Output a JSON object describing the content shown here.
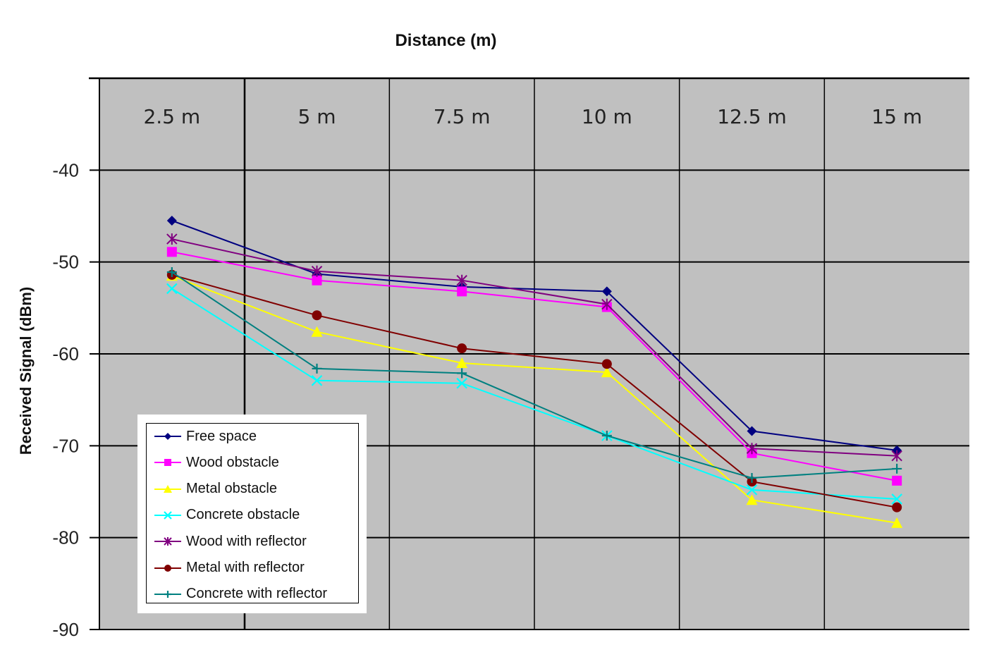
{
  "chart_data": {
    "type": "line",
    "xlabel": "Distance (m)",
    "ylabel": "Received Signal (dBm)",
    "categories": [
      "2.5 m",
      "5 m",
      "7.5 m",
      "10 m",
      "12.5 m",
      "15 m"
    ],
    "ylim": [
      -90,
      -30
    ],
    "yticks": [
      -40,
      -50,
      -60,
      -70,
      -80,
      -90
    ],
    "ytick_labels": [
      "-40",
      "-50",
      "-60",
      "-70",
      "-80",
      "-90"
    ],
    "grid": true,
    "legend_position": "bottom-left",
    "series": [
      {
        "name": "Free space",
        "color": "#000080",
        "marker": "diamond",
        "values": [
          -45.5,
          -51.3,
          -52.7,
          -53.2,
          -68.4,
          -70.5
        ]
      },
      {
        "name": "Wood obstacle",
        "color": "#ff00ff",
        "marker": "square",
        "values": [
          -48.9,
          -52.0,
          -53.2,
          -54.9,
          -70.8,
          -73.8
        ]
      },
      {
        "name": "Metal obstacle",
        "color": "#ffff00",
        "marker": "triangle",
        "values": [
          -51.5,
          -57.6,
          -61.0,
          -62.0,
          -75.9,
          -78.4
        ]
      },
      {
        "name": "Concrete obstacle",
        "color": "#00ffff",
        "marker": "x",
        "values": [
          -52.9,
          -62.9,
          -63.2,
          -68.9,
          -74.8,
          -75.8
        ]
      },
      {
        "name": "Wood with reflector",
        "color": "#800080",
        "marker": "star",
        "values": [
          -47.5,
          -51.0,
          -52.0,
          -54.6,
          -70.3,
          -71.1
        ]
      },
      {
        "name": "Metal with reflector",
        "color": "#800000",
        "marker": "circle",
        "values": [
          -51.4,
          -55.8,
          -59.4,
          -61.1,
          -73.9,
          -76.7
        ]
      },
      {
        "name": "Concrete with reflector",
        "color": "#008080",
        "marker": "plus",
        "values": [
          -51.1,
          -61.6,
          -62.1,
          -68.9,
          -73.5,
          -72.5
        ]
      }
    ]
  }
}
